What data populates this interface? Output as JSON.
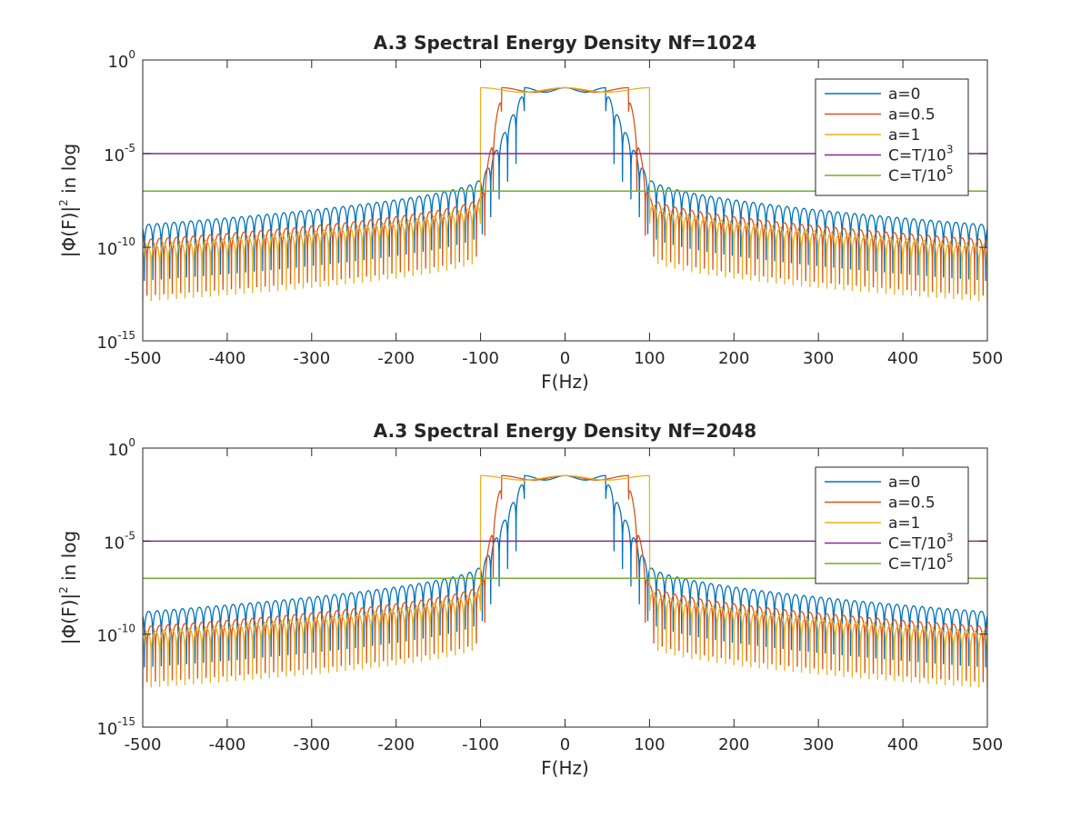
{
  "chart_data": [
    {
      "type": "line",
      "title": "A.3 Spectral Energy Density Nf=1024",
      "xlabel": "F(Hz)",
      "ylabel_main": "|Φ(F)|",
      "ylabel_sup": "2",
      "ylabel_suffix": " in log",
      "xlim": [
        -500,
        500
      ],
      "ylim": [
        1e-15,
        1
      ],
      "yscale": "log",
      "xticks": [
        -500,
        -400,
        -300,
        -200,
        -100,
        0,
        100,
        200,
        300,
        400,
        500
      ],
      "xtick_labels": [
        "-500",
        "-400",
        "-300",
        "-200",
        "-100",
        "0",
        "100",
        "200",
        "300",
        "400",
        "500"
      ],
      "ytick_exponents": [
        0,
        -5,
        -10,
        -15
      ],
      "ytick_base": "10",
      "ytick_sups": [
        "0",
        "-5",
        "-10",
        "-15"
      ],
      "grid": false,
      "legend_position": "top-right",
      "series": [
        {
          "name": "a=0",
          "kind": "spectrum",
          "color": "#0072BD",
          "passband_hz": 48,
          "peak_log10": -1.6,
          "tail_log10_at_100": -6.3,
          "tail_log10_at_500": -8.8,
          "null_spacing_hz": 10
        },
        {
          "name": "a=0.5",
          "kind": "spectrum",
          "color": "#D95319",
          "passband_hz": 75,
          "peak_log10": -1.6,
          "tail_log10_at_100": -7.3,
          "tail_log10_at_500": -9.6,
          "null_spacing_hz": 10
        },
        {
          "name": "a=1",
          "kind": "spectrum",
          "color": "#EDB120",
          "passband_hz": 100,
          "peak_log10": -1.6,
          "tail_log10_at_100": -7.6,
          "tail_log10_at_500": -9.9,
          "null_spacing_hz": 10
        },
        {
          "name": "C=T/10",
          "name_sup": "3",
          "kind": "constant",
          "color": "#7E2F8E",
          "value": 1e-05
        },
        {
          "name": "C=T/10",
          "name_sup": "5",
          "kind": "constant",
          "color": "#77AC30",
          "value": 1e-07
        }
      ]
    },
    {
      "type": "line",
      "title": "A.3 Spectral Energy Density  Nf=2048",
      "xlabel": "F(Hz)",
      "ylabel_main": "|Φ(F)|",
      "ylabel_sup": "2",
      "ylabel_suffix": " in log",
      "xlim": [
        -500,
        500
      ],
      "ylim": [
        1e-15,
        1
      ],
      "yscale": "log",
      "xticks": [
        -500,
        -400,
        -300,
        -200,
        -100,
        0,
        100,
        200,
        300,
        400,
        500
      ],
      "xtick_labels": [
        "-500",
        "-400",
        "-300",
        "-200",
        "-100",
        "0",
        "100",
        "200",
        "300",
        "400",
        "500"
      ],
      "ytick_exponents": [
        0,
        -5,
        -10,
        -15
      ],
      "ytick_base": "10",
      "ytick_sups": [
        "0",
        "-5",
        "-10",
        "-15"
      ],
      "grid": false,
      "legend_position": "top-right",
      "series": [
        {
          "name": "a=0",
          "kind": "spectrum",
          "color": "#0072BD",
          "passband_hz": 48,
          "peak_log10": -1.6,
          "tail_log10_at_100": -6.3,
          "tail_log10_at_500": -8.8,
          "null_spacing_hz": 10
        },
        {
          "name": "a=0.5",
          "kind": "spectrum",
          "color": "#D95319",
          "passband_hz": 75,
          "peak_log10": -1.6,
          "tail_log10_at_100": -7.3,
          "tail_log10_at_500": -9.6,
          "null_spacing_hz": 10
        },
        {
          "name": "a=1",
          "kind": "spectrum",
          "color": "#EDB120",
          "passband_hz": 100,
          "peak_log10": -1.6,
          "tail_log10_at_100": -7.6,
          "tail_log10_at_500": -9.9,
          "null_spacing_hz": 10
        },
        {
          "name": "C=T/10",
          "name_sup": "3",
          "kind": "constant",
          "color": "#7E2F8E",
          "value": 1e-05
        },
        {
          "name": "C=T/10",
          "name_sup": "5",
          "kind": "constant",
          "color": "#77AC30",
          "value": 1e-07
        }
      ]
    }
  ]
}
